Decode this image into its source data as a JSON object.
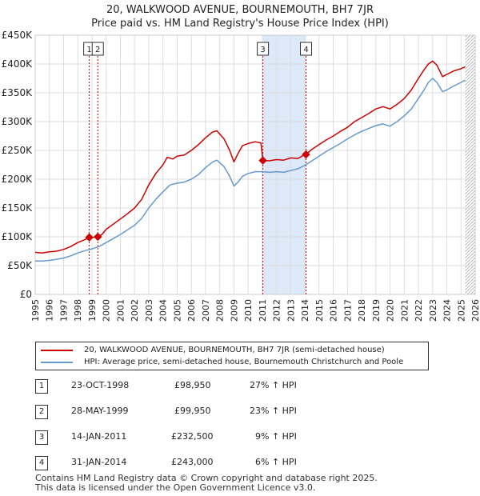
{
  "title_line1": "20, WALKWOOD AVENUE, BOURNEMOUTH, BH7 7JR",
  "title_line2": "Price paid vs. HM Land Registry's House Price Index (HPI)",
  "colors": {
    "price": "#cc0000",
    "hpi": "#6699cc",
    "shade": "#dde8f8",
    "grid": "#dddddd",
    "vline": "#cc0000"
  },
  "chart_data": {
    "type": "line",
    "x_range": [
      1995,
      2026
    ],
    "ylim": [
      0,
      450000
    ],
    "y_ticks": [
      0,
      50000,
      100000,
      150000,
      200000,
      250000,
      300000,
      350000,
      400000,
      450000
    ],
    "y_tick_labels": [
      "£0",
      "£50K",
      "£100K",
      "£150K",
      "£200K",
      "£250K",
      "£300K",
      "£350K",
      "£400K",
      "£450K"
    ],
    "x_ticks": [
      1995,
      1996,
      1997,
      1998,
      1999,
      2000,
      2001,
      2002,
      2003,
      2004,
      2005,
      2006,
      2007,
      2008,
      2009,
      2010,
      2011,
      2012,
      2013,
      2014,
      2015,
      2016,
      2017,
      2018,
      2019,
      2020,
      2021,
      2022,
      2023,
      2024,
      2025,
      2026
    ],
    "shaded_span": [
      2011.04,
      2014.08
    ],
    "hatched_from": 2025.3,
    "series": [
      {
        "name": "20, WALKWOOD AVENUE, BOURNEMOUTH, BH7 7JR (semi-detached house)",
        "color": "#cc0000",
        "x": [
          1995.0,
          1995.5,
          1996.0,
          1996.5,
          1997.0,
          1997.5,
          1998.0,
          1998.5,
          1998.81,
          1999.0,
          1999.41,
          1999.7,
          2000.0,
          2000.5,
          2001.0,
          2001.5,
          2002.0,
          2002.5,
          2003.0,
          2003.5,
          2004.0,
          2004.3,
          2004.7,
          2005.0,
          2005.5,
          2006.0,
          2006.5,
          2007.0,
          2007.5,
          2007.8,
          2008.3,
          2008.7,
          2009.0,
          2009.3,
          2009.6,
          2010.0,
          2010.5,
          2010.9,
          2011.04,
          2011.5,
          2012.0,
          2012.5,
          2013.0,
          2013.5,
          2013.8,
          2014.08,
          2014.5,
          2015.0,
          2015.5,
          2016.0,
          2016.5,
          2017.0,
          2017.5,
          2018.0,
          2018.5,
          2019.0,
          2019.5,
          2020.0,
          2020.5,
          2021.0,
          2021.5,
          2022.0,
          2022.4,
          2022.7,
          2023.0,
          2023.3,
          2023.7,
          2024.0,
          2024.5,
          2025.0,
          2025.3
        ],
        "values": [
          73000,
          72000,
          74000,
          75000,
          78000,
          83000,
          90000,
          95000,
          98950,
          99000,
          99950,
          104000,
          113000,
          122000,
          131000,
          140000,
          150000,
          165000,
          190000,
          210000,
          225000,
          238000,
          235000,
          240000,
          242000,
          250000,
          260000,
          272000,
          282000,
          284000,
          270000,
          250000,
          230000,
          245000,
          258000,
          262000,
          265000,
          263000,
          232500,
          232000,
          234000,
          233000,
          237000,
          236000,
          240000,
          243000,
          252000,
          260000,
          268000,
          275000,
          283000,
          290000,
          300000,
          307000,
          314000,
          322000,
          326000,
          322000,
          330000,
          340000,
          355000,
          375000,
          390000,
          400000,
          405000,
          398000,
          378000,
          382000,
          388000,
          392000,
          395000
        ]
      },
      {
        "name": "HPI: Average price, semi-detached house, Bournemouth Christchurch and Poole",
        "color": "#6699cc",
        "x": [
          1995.0,
          1995.5,
          1996.0,
          1996.5,
          1997.0,
          1997.5,
          1998.0,
          1998.5,
          1999.0,
          1999.5,
          2000.0,
          2000.5,
          2001.0,
          2001.5,
          2002.0,
          2002.5,
          2003.0,
          2003.5,
          2004.0,
          2004.5,
          2005.0,
          2005.5,
          2006.0,
          2006.5,
          2007.0,
          2007.5,
          2007.8,
          2008.3,
          2008.7,
          2009.0,
          2009.3,
          2009.6,
          2010.0,
          2010.5,
          2011.0,
          2011.5,
          2012.0,
          2012.5,
          2013.0,
          2013.5,
          2014.0,
          2014.5,
          2015.0,
          2015.5,
          2016.0,
          2016.5,
          2017.0,
          2017.5,
          2018.0,
          2018.5,
          2019.0,
          2019.5,
          2020.0,
          2020.5,
          2021.0,
          2021.5,
          2022.0,
          2022.4,
          2022.7,
          2023.0,
          2023.3,
          2023.7,
          2024.0,
          2024.5,
          2025.0,
          2025.3
        ],
        "values": [
          58000,
          58000,
          59000,
          61000,
          63000,
          67000,
          72000,
          76000,
          79000,
          83000,
          90000,
          97000,
          104000,
          112000,
          120000,
          132000,
          150000,
          165000,
          178000,
          190000,
          193000,
          195000,
          200000,
          208000,
          220000,
          230000,
          233000,
          222000,
          205000,
          188000,
          195000,
          205000,
          210000,
          213000,
          213000,
          212000,
          213000,
          212000,
          215000,
          218000,
          224000,
          232000,
          240000,
          248000,
          255000,
          262000,
          270000,
          277000,
          283000,
          288000,
          293000,
          296000,
          292000,
          300000,
          310000,
          322000,
          340000,
          355000,
          368000,
          375000,
          368000,
          352000,
          355000,
          362000,
          368000,
          372000
        ]
      }
    ],
    "sales": [
      {
        "label": "1",
        "x": 1998.81,
        "value": 98950
      },
      {
        "label": "2",
        "x": 1999.41,
        "value": 99950
      },
      {
        "label": "3",
        "x": 2011.04,
        "value": 232500
      },
      {
        "label": "4",
        "x": 2014.08,
        "value": 243000
      }
    ]
  },
  "legend": {
    "price_label": "20, WALKWOOD AVENUE, BOURNEMOUTH, BH7 7JR (semi-detached house)",
    "hpi_label": "HPI: Average price, semi-detached house, Bournemouth Christchurch and Poole"
  },
  "transactions": [
    {
      "num": "1",
      "date": "23-OCT-1998",
      "price": "£98,950",
      "hpi": "27% ↑ HPI"
    },
    {
      "num": "2",
      "date": "28-MAY-1999",
      "price": "£99,950",
      "hpi": "23% ↑ HPI"
    },
    {
      "num": "3",
      "date": "14-JAN-2011",
      "price": "£232,500",
      "hpi": "9% ↑ HPI"
    },
    {
      "num": "4",
      "date": "31-JAN-2014",
      "price": "£243,000",
      "hpi": "6% ↑ HPI"
    }
  ],
  "footer_line1": "Contains HM Land Registry data © Crown copyright and database right 2025.",
  "footer_line2": "This data is licensed under the Open Government Licence v3.0."
}
